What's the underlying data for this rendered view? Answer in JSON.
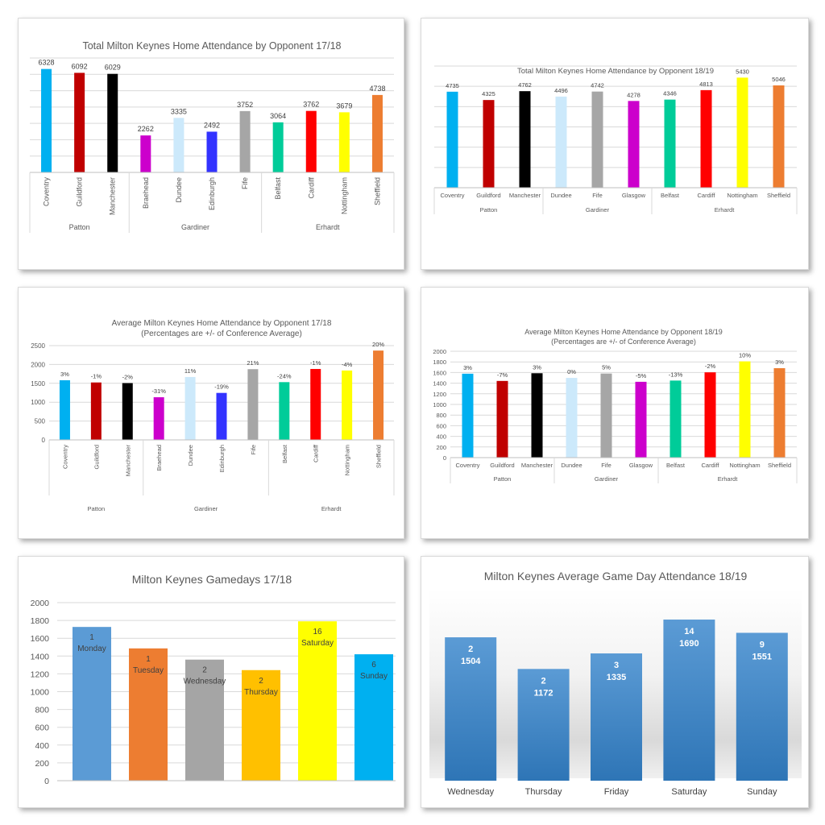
{
  "chart_data": [
    {
      "id": "total_1718",
      "type": "bar",
      "title": "Total Milton Keynes Home Attendance by Opponent 17/18",
      "title_lines": [
        "Total Milton Keynes Home Attendance by Opponent 17/18"
      ],
      "categories": [
        "Coventry",
        "Guildford",
        "Manchester",
        "Braehead",
        "Dundee",
        "Edinburgh",
        "Fife",
        "Belfast",
        "Cardiff",
        "Nottingham",
        "Sheffield"
      ],
      "values": [
        6328,
        6092,
        6029,
        2262,
        3335,
        2492,
        3752,
        3064,
        3762,
        3679,
        4738
      ],
      "labels": [
        "6328",
        "6092",
        "6029",
        "2262",
        "3335",
        "2492",
        "3752",
        "3064",
        "3762",
        "3679",
        "4738"
      ],
      "colors": [
        "#00b0f0",
        "#c00000",
        "#000000",
        "#cc00cc",
        "#cce9fb",
        "#3333ff",
        "#a6a6a6",
        "#00cc99",
        "#ff0000",
        "#ffff00",
        "#ed7d31"
      ],
      "groups": [
        {
          "name": "Patton",
          "span": [
            0,
            2
          ]
        },
        {
          "name": "Gardiner",
          "span": [
            3,
            6
          ]
        },
        {
          "name": "Erhardt",
          "span": [
            7,
            10
          ]
        }
      ],
      "ylim": [
        0,
        7000
      ],
      "grid_step": 1000,
      "show_y_ticks": false,
      "rotated_labels": true
    },
    {
      "id": "total_1819",
      "type": "bar",
      "title": "Total Milton Keynes Home Attendance by Opponent 18/19",
      "title_lines": [
        "Total Milton Keynes Home Attendance by Opponent 18/19"
      ],
      "categories": [
        "Coventry",
        "Guildford",
        "Manchester",
        "Dundee",
        "Fife",
        "Glasgow",
        "Belfast",
        "Cardiff",
        "Nottingham",
        "Sheffield"
      ],
      "values": [
        4735,
        4325,
        4762,
        4496,
        4742,
        4278,
        4346,
        4813,
        5430,
        5046
      ],
      "labels": [
        "4735",
        "4325",
        "4762",
        "4496",
        "4742",
        "4278",
        "4346",
        "4813",
        "5430",
        "5046"
      ],
      "colors": [
        "#00b0f0",
        "#c00000",
        "#000000",
        "#cce9fb",
        "#a6a6a6",
        "#cc00cc",
        "#00cc99",
        "#ff0000",
        "#ffff00",
        "#ed7d31"
      ],
      "groups": [
        {
          "name": "Patton",
          "span": [
            0,
            2
          ]
        },
        {
          "name": "Gardiner",
          "span": [
            3,
            5
          ]
        },
        {
          "name": "Erhardt",
          "span": [
            6,
            9
          ]
        }
      ],
      "ylim": [
        0,
        6000
      ],
      "grid_step": 1000,
      "show_y_ticks": false,
      "rotated_labels": false
    },
    {
      "id": "avg_1718",
      "type": "bar",
      "title": "Average Milton Keynes Home Attendance by Opponent 17/18 (Percentages are +/- of Conference Average)",
      "title_lines": [
        "Average Milton Keynes Home Attendance by Opponent 17/18",
        "(Percentages are +/- of Conference Average)"
      ],
      "categories": [
        "Coventry",
        "Guildford",
        "Manchester",
        "Braehead",
        "Dundee",
        "Edinburgh",
        "Fife",
        "Belfast",
        "Cardiff",
        "Nottingham",
        "Sheffield"
      ],
      "values": [
        1582,
        1523,
        1507,
        1131,
        1668,
        1246,
        1876,
        1532,
        1881,
        1840,
        2369
      ],
      "labels": [
        "3%",
        "-1%",
        "-2%",
        "-31%",
        "11%",
        "-19%",
        "21%",
        "-24%",
        "-1%",
        "-4%",
        "20%"
      ],
      "colors": [
        "#00b0f0",
        "#c00000",
        "#000000",
        "#cc00cc",
        "#cce9fb",
        "#3333ff",
        "#a6a6a6",
        "#00cc99",
        "#ff0000",
        "#ffff00",
        "#ed7d31"
      ],
      "groups": [
        {
          "name": "Patton",
          "span": [
            0,
            2
          ]
        },
        {
          "name": "Gardiner",
          "span": [
            3,
            6
          ]
        },
        {
          "name": "Erhardt",
          "span": [
            7,
            10
          ]
        }
      ],
      "ylim": [
        0,
        2500
      ],
      "grid_step": 500,
      "yticks": [
        "0",
        "500",
        "1000",
        "1500",
        "2000",
        "2500"
      ],
      "show_y_ticks": true,
      "rotated_labels": true
    },
    {
      "id": "avg_1819",
      "type": "bar",
      "title": "Average Milton Keynes Home Attendance by Opponent 18/19 (Percentages are +/- of Conference Average)",
      "title_lines": [
        "Average Milton Keynes Home Attendance by Opponent 18/19",
        "(Percentages are +/- of Conference Average)"
      ],
      "categories": [
        "Coventry",
        "Guildford",
        "Manchester",
        "Dundee",
        "Fife",
        "Glasgow",
        "Belfast",
        "Cardiff",
        "Nottingham",
        "Sheffield"
      ],
      "values": [
        1578,
        1442,
        1587,
        1499,
        1581,
        1426,
        1449,
        1604,
        1810,
        1682
      ],
      "labels": [
        "3%",
        "-7%",
        "3%",
        "0%",
        "5%",
        "-5%",
        "-13%",
        "-2%",
        "10%",
        "3%"
      ],
      "colors": [
        "#00b0f0",
        "#c00000",
        "#000000",
        "#cce9fb",
        "#a6a6a6",
        "#cc00cc",
        "#00cc99",
        "#ff0000",
        "#ffff00",
        "#ed7d31"
      ],
      "groups": [
        {
          "name": "Patton",
          "span": [
            0,
            2
          ]
        },
        {
          "name": "Gardiner",
          "span": [
            3,
            5
          ]
        },
        {
          "name": "Erhardt",
          "span": [
            6,
            9
          ]
        }
      ],
      "ylim": [
        0,
        2000
      ],
      "grid_step": 200,
      "yticks": [
        "0",
        "200",
        "400",
        "600",
        "800",
        "1000",
        "1200",
        "1400",
        "1600",
        "1800",
        "2000"
      ],
      "show_y_ticks": true,
      "rotated_labels": false
    },
    {
      "id": "gamedays_1718",
      "type": "bar",
      "title": "Milton Keynes Gamedays 17/18",
      "title_lines": [
        "Milton Keynes Gamedays 17/18"
      ],
      "categories": [
        "Monday",
        "Tuesday",
        "Wednesday",
        "Thursday",
        "Saturday",
        "Sunday"
      ],
      "games": [
        "1",
        "1",
        "2",
        "2",
        "16",
        "6"
      ],
      "values": [
        1727,
        1486,
        1360,
        1242,
        1790,
        1420
      ],
      "colors": [
        "#5b9bd5",
        "#ed7d31",
        "#a5a5a5",
        "#ffc000",
        "#ffff00",
        "#00b0f0"
      ],
      "ylim": [
        0,
        2000
      ],
      "grid_step": 200,
      "yticks": [
        "0",
        "200",
        "400",
        "600",
        "800",
        "1000",
        "1200",
        "1400",
        "1600",
        "1800",
        "2000"
      ]
    },
    {
      "id": "gameday_avg_1819",
      "type": "bar",
      "title": "Milton Keynes Average Game Day Attendance 18/19",
      "title_lines": [
        "Milton Keynes Average Game Day Attendance 18/19"
      ],
      "categories": [
        "Wednesday",
        "Thursday",
        "Friday",
        "Saturday",
        "Sunday"
      ],
      "games": [
        "2",
        "2",
        "3",
        "14",
        "9"
      ],
      "values": [
        1504,
        1172,
        1335,
        1690,
        1551
      ],
      "value_labels": [
        "1504",
        "1172",
        "1335",
        "1690",
        "1551"
      ],
      "color": "#5b9bd5",
      "ylim": [
        0,
        1800
      ]
    }
  ]
}
